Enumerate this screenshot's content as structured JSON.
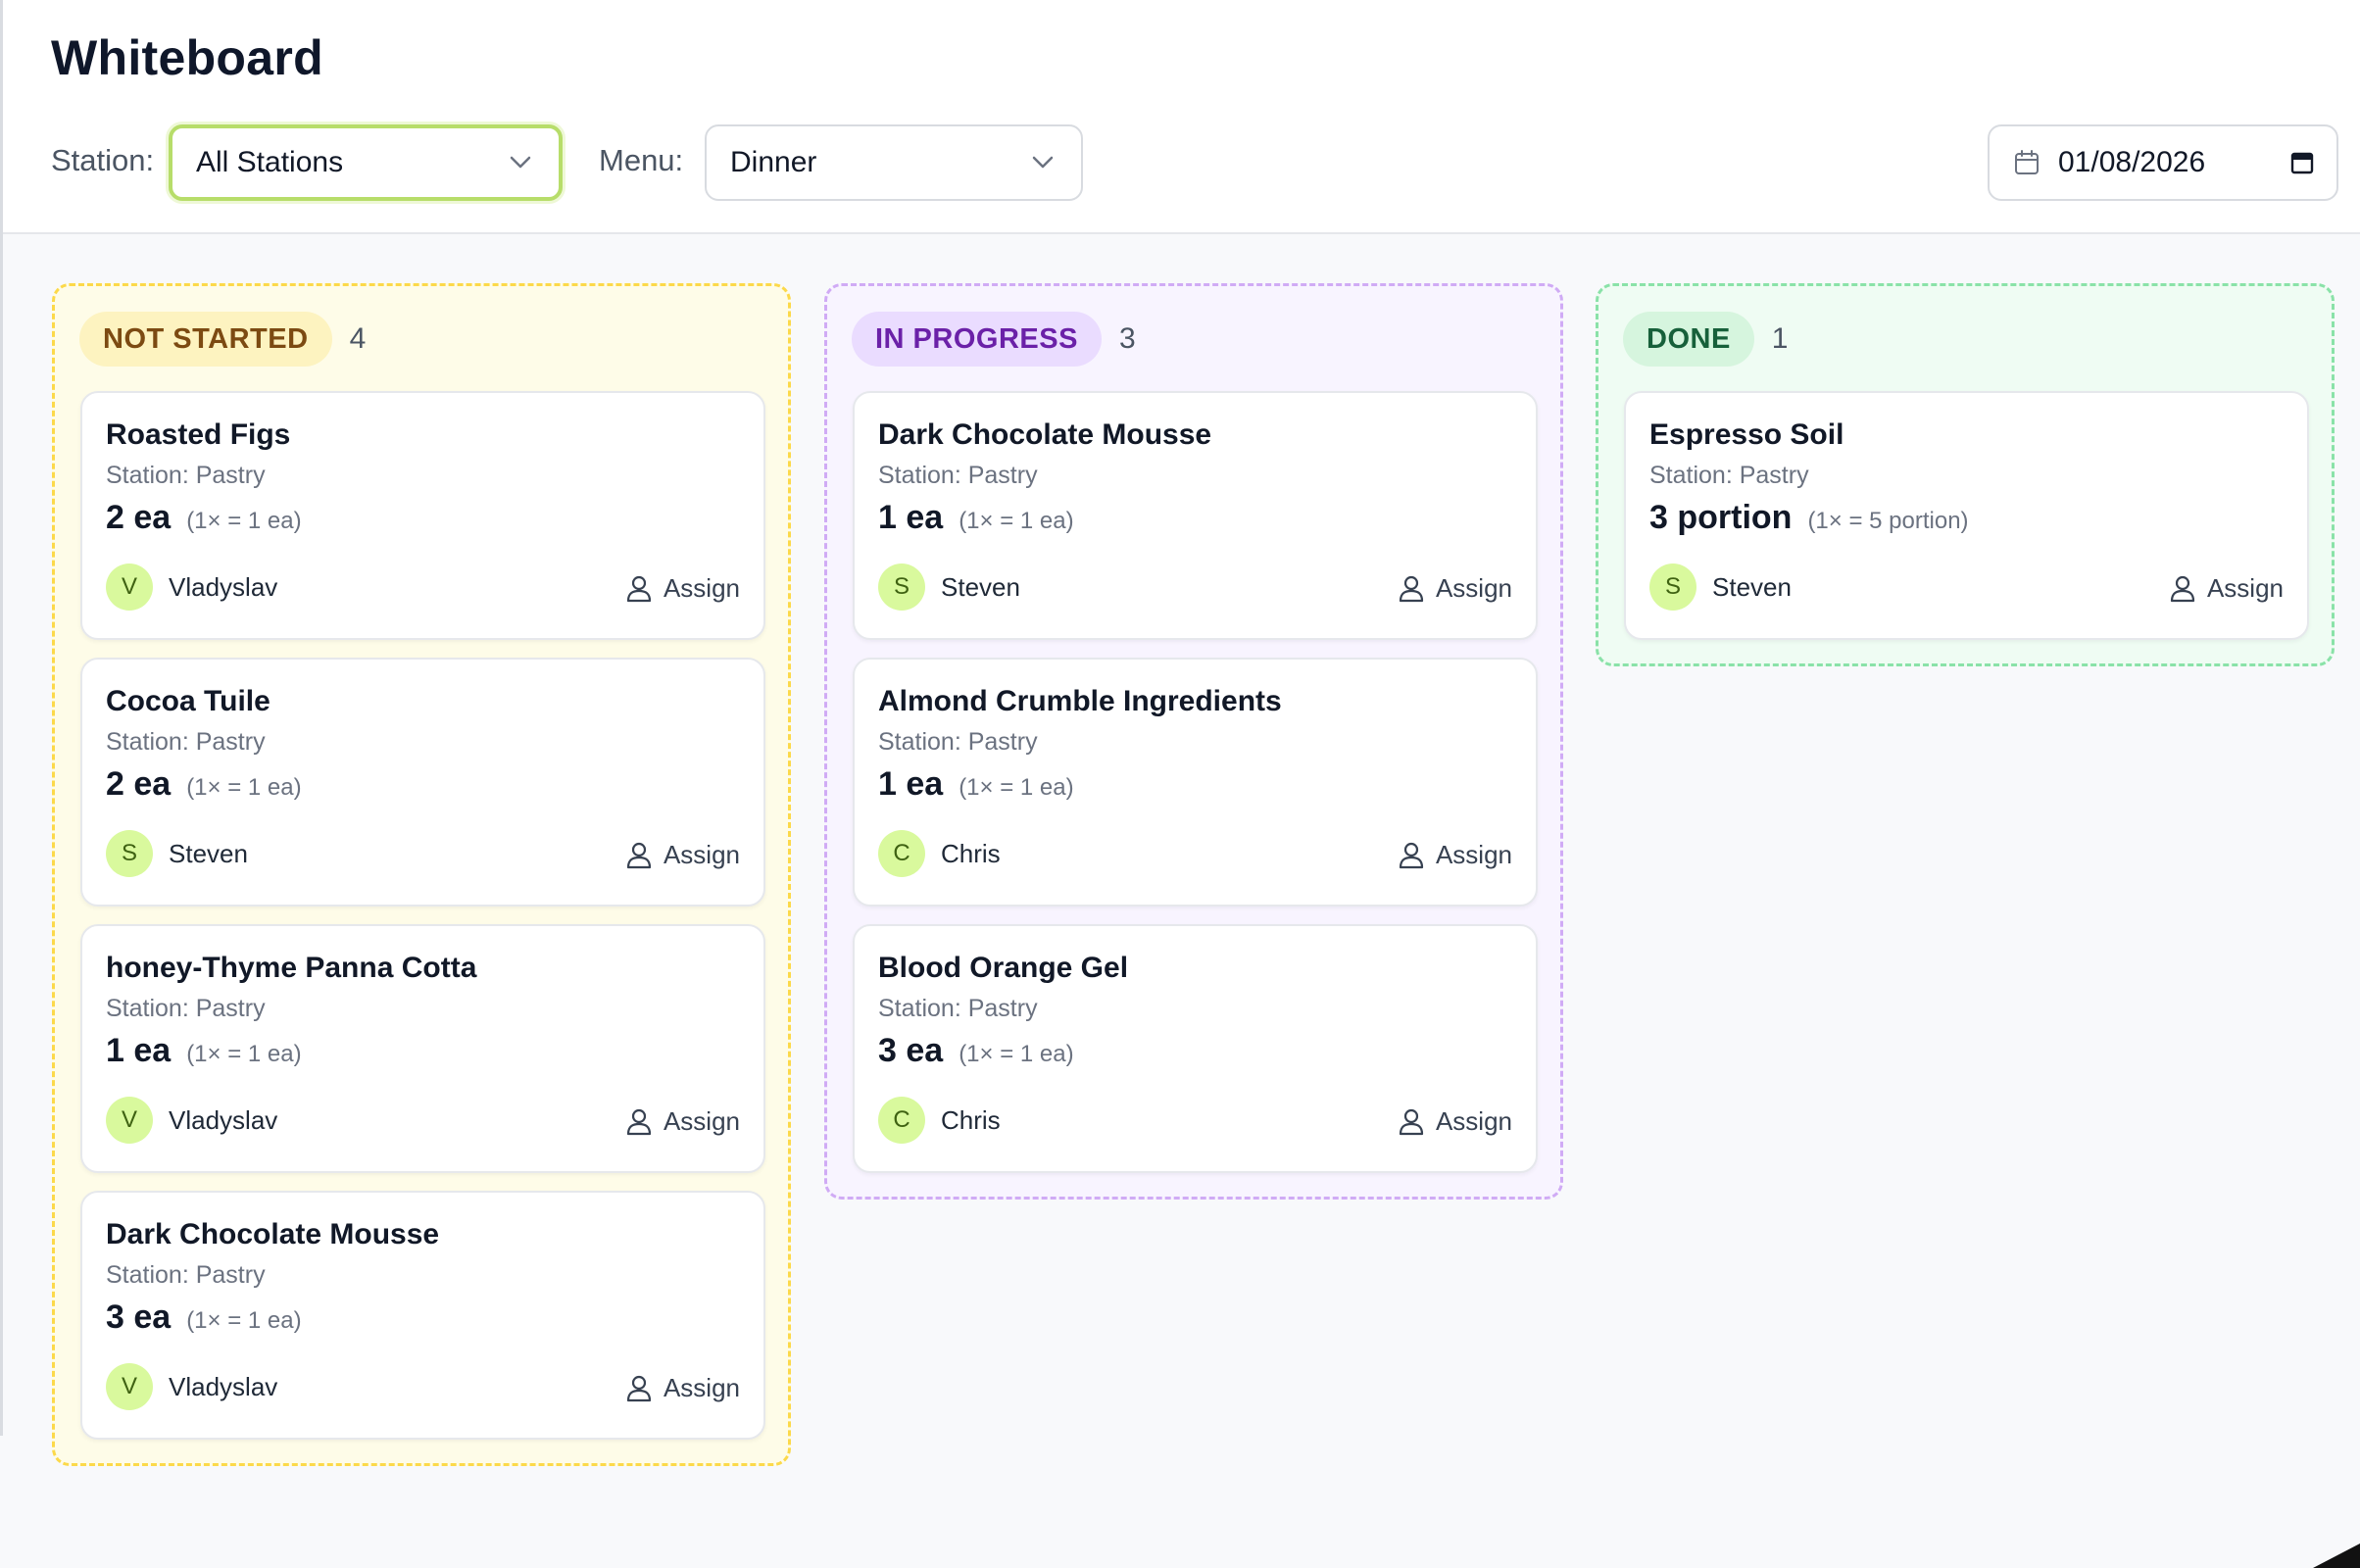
{
  "page": {
    "title": "Whiteboard"
  },
  "filters": {
    "station_label": "Station:",
    "station_value": "All Stations",
    "menu_label": "Menu:",
    "menu_value": "Dinner",
    "date_value": "01/08/2026"
  },
  "columns": [
    {
      "label": "NOT STARTED",
      "count": "4",
      "color": "#fcd94a",
      "cards": [
        {
          "name": "Roasted Figs",
          "station": "Station: Pastry",
          "qty": "2 ea",
          "conversion": "(1× = 1 ea)",
          "assignee_initial": "V",
          "assignee": "Vladyslav",
          "assign_label": "Assign"
        },
        {
          "name": "Cocoa Tuile",
          "station": "Station: Pastry",
          "qty": "2 ea",
          "conversion": "(1× = 1 ea)",
          "assignee_initial": "S",
          "assignee": "Steven",
          "assign_label": "Assign"
        },
        {
          "name": "honey-Thyme Panna Cotta",
          "station": "Station: Pastry",
          "qty": "1 ea",
          "conversion": "(1× = 1 ea)",
          "assignee_initial": "V",
          "assignee": "Vladyslav",
          "assign_label": "Assign"
        },
        {
          "name": "Dark Chocolate Mousse",
          "station": "Station: Pastry",
          "qty": "3 ea",
          "conversion": "(1× = 1 ea)",
          "assignee_initial": "V",
          "assignee": "Vladyslav",
          "assign_label": "Assign"
        }
      ]
    },
    {
      "label": "IN PROGRESS",
      "count": "3",
      "color": "#d0abf5",
      "cards": [
        {
          "name": "Dark Chocolate Mousse",
          "station": "Station: Pastry",
          "qty": "1 ea",
          "conversion": "(1× = 1 ea)",
          "assignee_initial": "S",
          "assignee": "Steven",
          "assign_label": "Assign"
        },
        {
          "name": "Almond Crumble Ingredients",
          "station": "Station: Pastry",
          "qty": "1 ea",
          "conversion": "(1× = 1 ea)",
          "assignee_initial": "C",
          "assignee": "Chris",
          "assign_label": "Assign"
        },
        {
          "name": "Blood Orange Gel",
          "station": "Station: Pastry",
          "qty": "3 ea",
          "conversion": "(1× = 1 ea)",
          "assignee_initial": "C",
          "assignee": "Chris",
          "assign_label": "Assign"
        }
      ]
    },
    {
      "label": "DONE",
      "count": "1",
      "color": "#8ae2a8",
      "cards": [
        {
          "name": "Espresso Soil",
          "station": "Station: Pastry",
          "qty": "3 portion",
          "conversion": "(1× = 5 portion)",
          "assignee_initial": "S",
          "assignee": "Steven",
          "assign_label": "Assign"
        }
      ]
    }
  ]
}
